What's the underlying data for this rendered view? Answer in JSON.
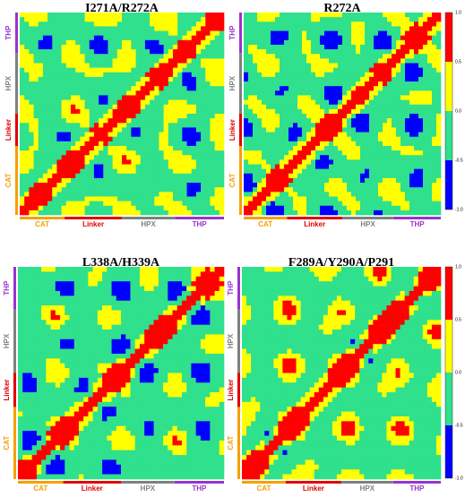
{
  "panels": [
    {
      "title": "I271A/R272A",
      "x_labels": [
        "CAT",
        "Linker",
        "HPX",
        "THP"
      ],
      "y_labels": [
        "CAT",
        "Linker",
        "HPX",
        "THP"
      ]
    },
    {
      "title": "R272A",
      "x_labels": [
        "CAT",
        "Linker",
        "HPX",
        "THP"
      ],
      "y_labels": [
        "CAT",
        "Linker",
        "HPX",
        "THP"
      ]
    },
    {
      "title": "L338A/H339A",
      "x_labels": [
        "CAT",
        "Linker",
        "HPX",
        "THP"
      ],
      "y_labels": [
        "CAT",
        "Linker",
        "HPX",
        "THP"
      ]
    },
    {
      "title": "F289A/Y290A/P291",
      "x_labels": [
        "CAT",
        "Linker",
        "HPX",
        "THP"
      ],
      "y_labels": [
        "CAT",
        "Linker",
        "HPX",
        "THP"
      ]
    }
  ],
  "colorbars": [
    {
      "labels": [
        "1.0",
        "0.5",
        "0.0",
        "-0.5",
        "-1.0"
      ]
    },
    {
      "labels": [
        "1.0",
        "0.5",
        "0.0",
        "-0.5",
        "-1.0"
      ]
    }
  ]
}
